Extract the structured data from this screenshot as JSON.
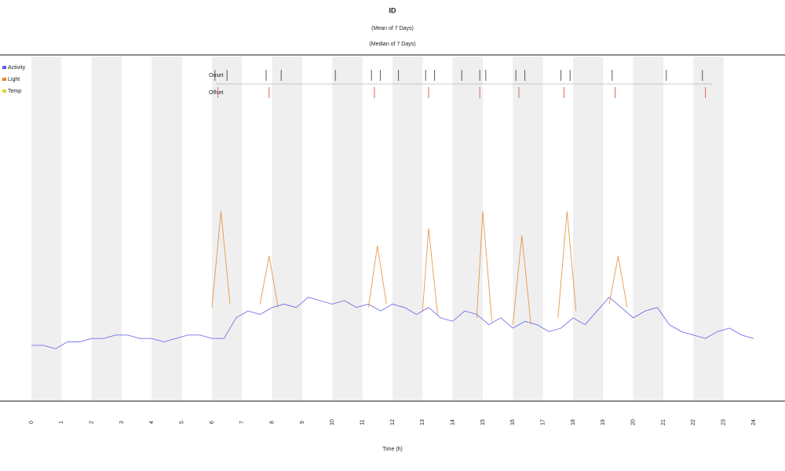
{
  "chart_data": {
    "type": "line",
    "title": "ID",
    "subtitles": [
      "(Mean of 7 Days)",
      "(Median of 7 Days)"
    ],
    "x_label": "Time (h)",
    "xlim": [
      0,
      24
    ],
    "ylim": [
      0,
      100
    ],
    "xticks": [
      0,
      1,
      2,
      3,
      4,
      5,
      6,
      7,
      8,
      9,
      10,
      11,
      12,
      13,
      14,
      15,
      16,
      17,
      18,
      19,
      20,
      21,
      22,
      23,
      24
    ],
    "shade": "#efefef",
    "legend": "top-left",
    "series": [
      {
        "name": "Activity",
        "color": "#5a5ae6",
        "x": [
          0,
          0.4,
          0.8,
          1.2,
          1.6,
          2,
          2.4,
          2.8,
          3.2,
          3.6,
          4,
          4.4,
          4.8,
          5.2,
          5.6,
          6,
          6.4,
          6.8,
          7.2,
          7.6,
          8,
          8.4,
          8.8,
          9.2,
          9.6,
          10,
          10.4,
          10.8,
          11.2,
          11.6,
          12,
          12.4,
          12.8,
          13.2,
          13.6,
          14,
          14.4,
          14.8,
          15.2,
          15.6,
          16,
          16.4,
          16.8,
          17.2,
          17.6,
          18,
          18.4,
          18.8,
          19.2,
          19.6,
          20,
          20.4,
          20.8,
          21.2,
          21.6,
          22,
          22.4,
          22.8,
          23.2,
          23.6,
          24
        ],
        "values": [
          16,
          16,
          15,
          17,
          17,
          18,
          18,
          19,
          19,
          18,
          18,
          17,
          18,
          19,
          19,
          18,
          18,
          24,
          26,
          25,
          27,
          28,
          27,
          30,
          29,
          28,
          29,
          27,
          28,
          26,
          28,
          27,
          25,
          27,
          24,
          23,
          26,
          25,
          22,
          24,
          21,
          23,
          22,
          20,
          21,
          24,
          22,
          26,
          30,
          27,
          24,
          26,
          27,
          22,
          20,
          19,
          18,
          20,
          21,
          19,
          18
        ]
      },
      {
        "name": "Light",
        "color": "#e8862a",
        "x": [
          6.0,
          6.3,
          6.6,
          null,
          7.6,
          7.9,
          8.2,
          null,
          11.2,
          11.5,
          11.8,
          null,
          13.0,
          13.2,
          13.5,
          null,
          14.8,
          15.0,
          15.3,
          null,
          16.0,
          16.3,
          16.6,
          null,
          17.5,
          17.8,
          18.1,
          null,
          19.2,
          19.5,
          19.8
        ],
        "values": [
          27,
          55,
          28,
          null,
          28,
          42,
          27,
          null,
          27,
          45,
          28,
          null,
          26,
          50,
          25,
          null,
          24,
          55,
          23,
          null,
          22,
          48,
          22,
          null,
          24,
          55,
          26,
          null,
          28,
          42,
          27
        ]
      },
      {
        "name": "Temp",
        "color": "#d6d62a",
        "x": [],
        "values": []
      }
    ],
    "tracks": [
      {
        "name": "Onset",
        "color": "#333333",
        "x": [
          6.1,
          6.5,
          7.8,
          8.3,
          10.1,
          11.3,
          11.6,
          12.2,
          13.1,
          13.4,
          14.3,
          14.9,
          15.1,
          16.1,
          16.4,
          17.6,
          17.9,
          19.3,
          21.1,
          22.3
        ]
      },
      {
        "name": "Offset",
        "color": "#d94040",
        "x": [
          6.2,
          7.9,
          11.4,
          13.2,
          14.9,
          16.2,
          17.7,
          19.4,
          22.4
        ]
      }
    ]
  }
}
